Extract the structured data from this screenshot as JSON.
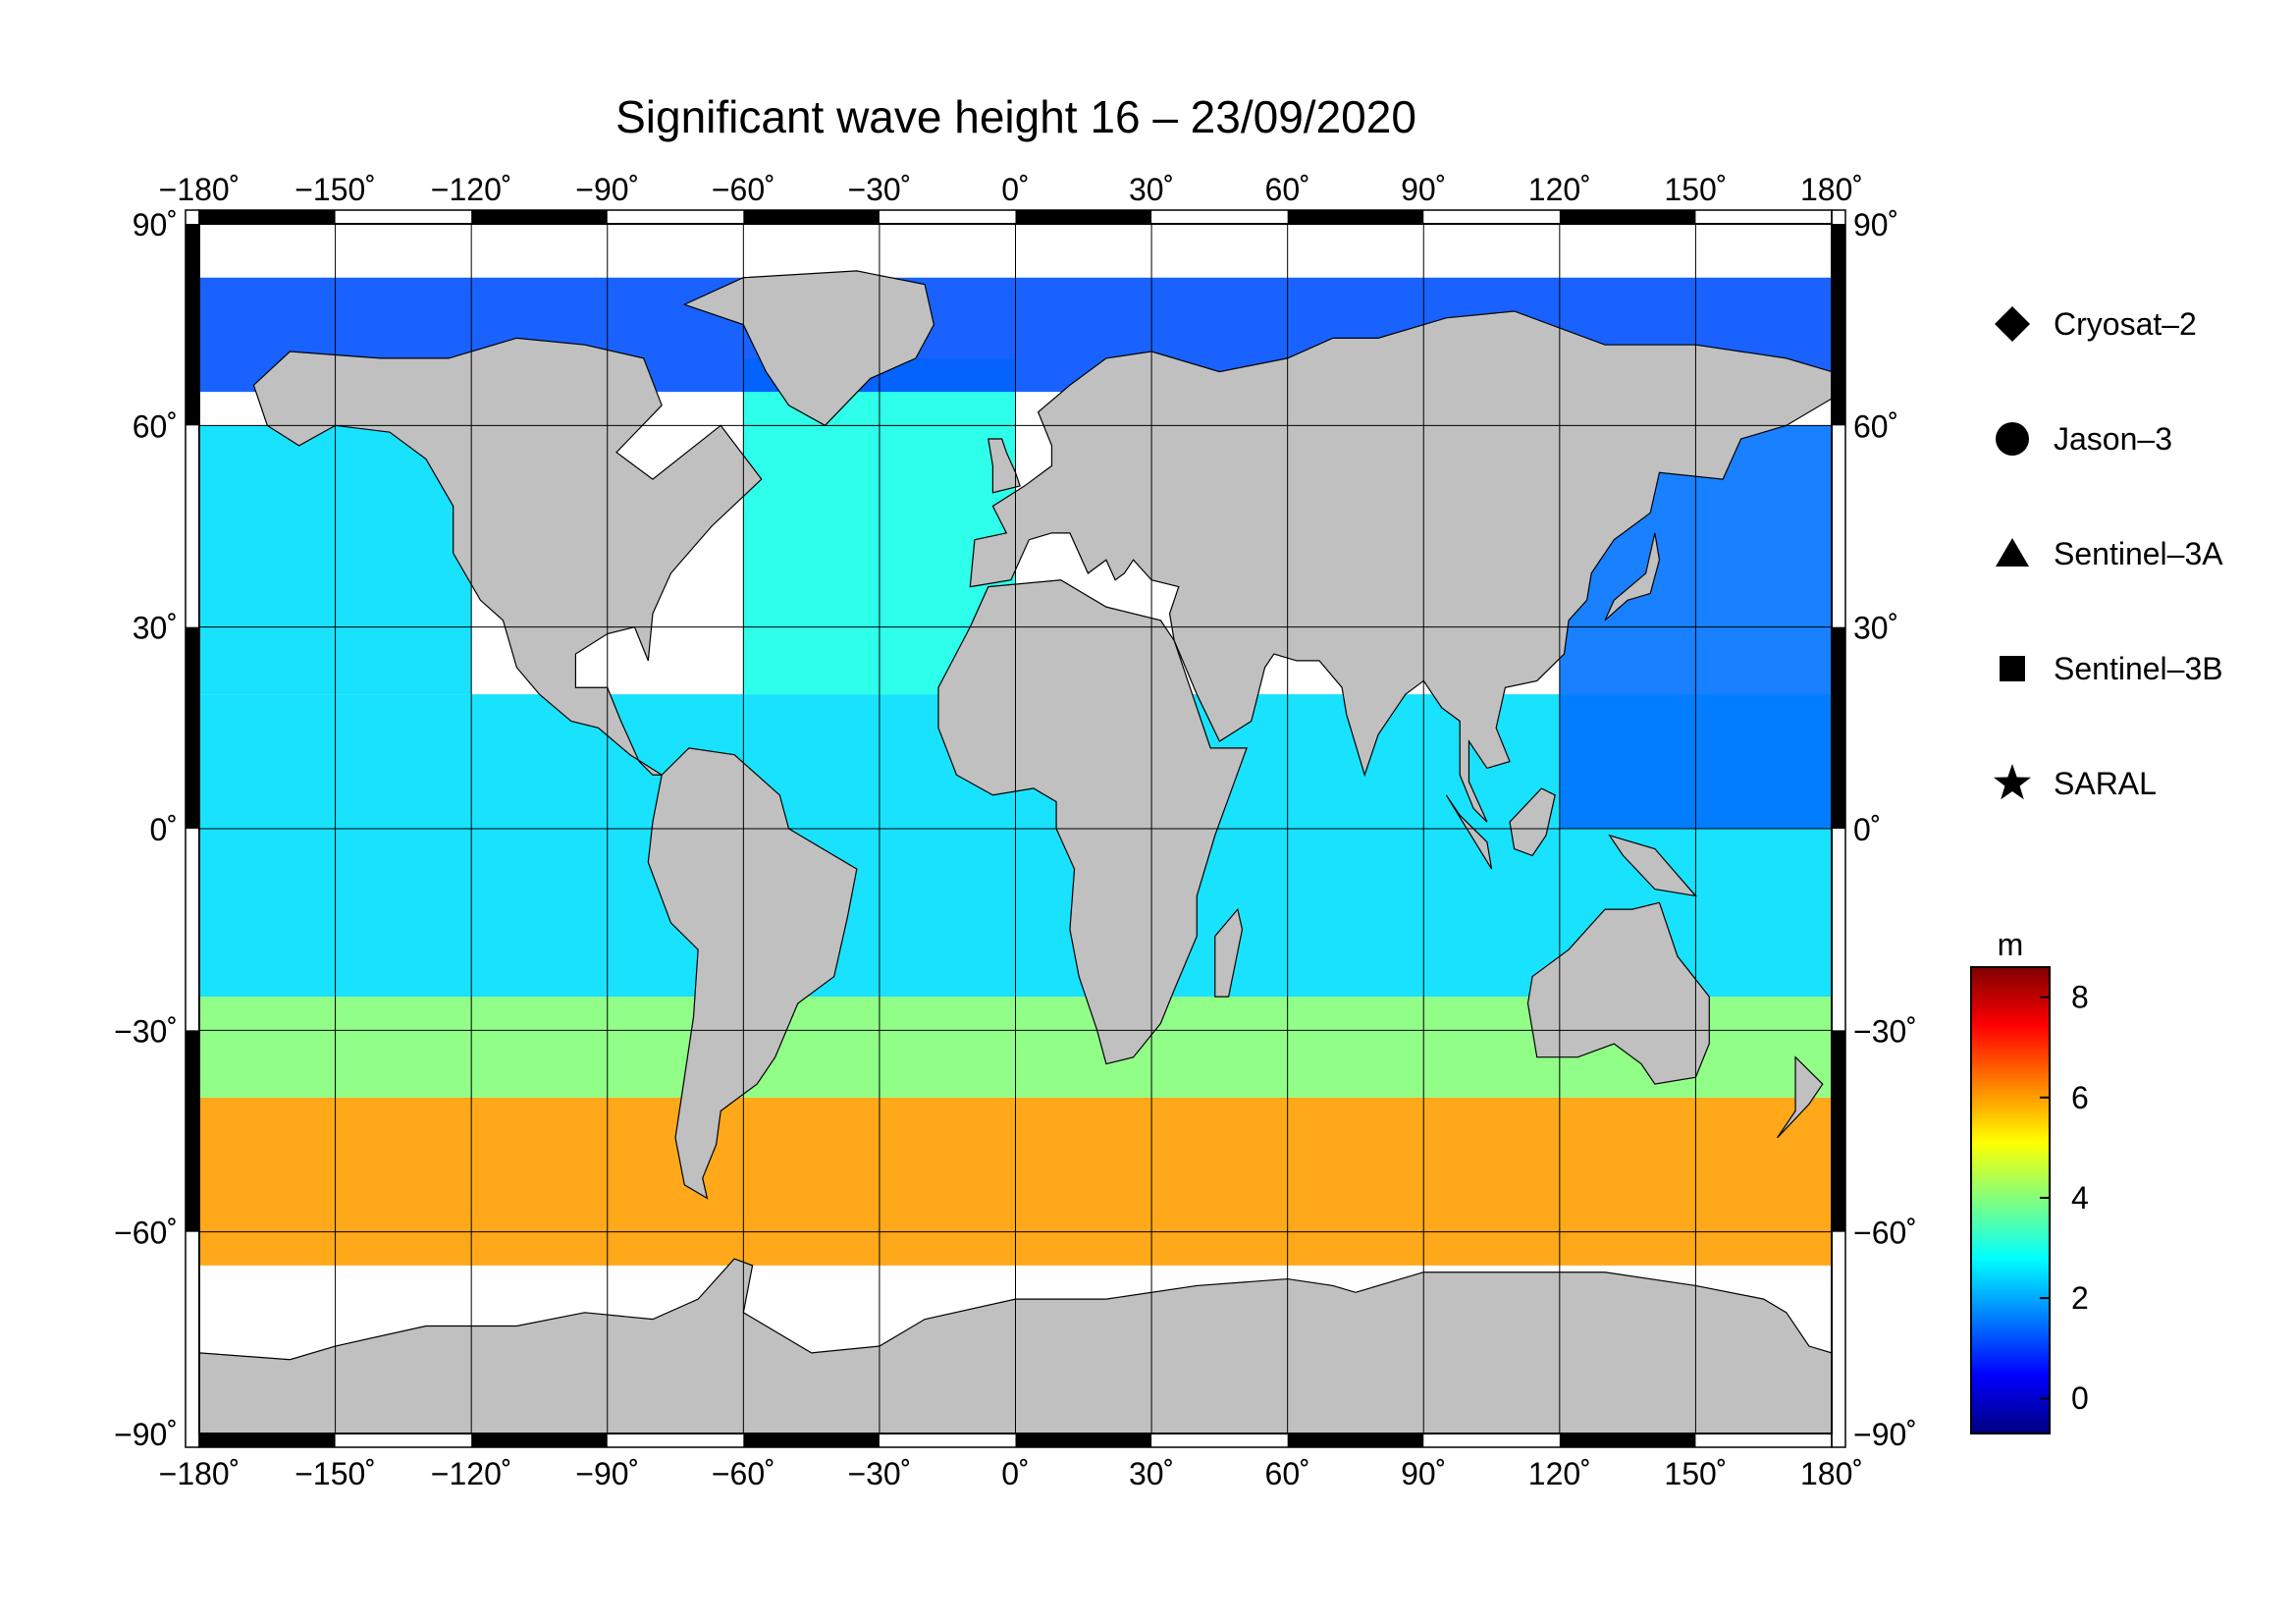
{
  "title": "Significant wave height 16 – 23/09/2020",
  "map": {
    "projection": "equirectangular",
    "lon_range": [
      -180,
      180
    ],
    "lat_range": [
      -90,
      90
    ],
    "lon_ticks": [
      -180,
      -150,
      -120,
      -90,
      -60,
      -30,
      0,
      30,
      60,
      90,
      120,
      150,
      180
    ],
    "lat_ticks": [
      90,
      60,
      30,
      0,
      -30,
      -60,
      -90
    ],
    "lon_tick_labels": [
      "−180˚",
      "−150˚",
      "−120˚",
      "−90˚",
      "−60˚",
      "−30˚",
      "0˚",
      "30˚",
      "60˚",
      "90˚",
      "120˚",
      "150˚",
      "180˚"
    ],
    "lat_tick_labels": [
      "90˚",
      "60˚",
      "30˚",
      "0˚",
      "−30˚",
      "−60˚",
      "−90˚"
    ],
    "grid": true,
    "land_color": "#c0c0c0",
    "ice_color": "#ffffff",
    "background_color": "#ffffff"
  },
  "legend": {
    "placement": "right",
    "items": [
      {
        "label": "Cryosat–2",
        "symbol": "diamond"
      },
      {
        "label": "Jason–3",
        "symbol": "circle"
      },
      {
        "label": "Sentinel–3A",
        "symbol": "triangle"
      },
      {
        "label": "Sentinel–3B",
        "symbol": "square"
      },
      {
        "label": "SARAL",
        "symbol": "star"
      }
    ]
  },
  "colorbar": {
    "unit": "m",
    "range": [
      -0.7,
      8.6
    ],
    "ticks": [
      0,
      2,
      4,
      6,
      8
    ],
    "tick_labels": [
      "0",
      "2",
      "4",
      "6",
      "8"
    ],
    "colormap": "jet"
  },
  "chart_data": {
    "type": "heatmap",
    "title": "Significant wave height 16 – 23/09/2020",
    "xlabel": "",
    "ylabel": "",
    "xlim": [
      -180,
      180
    ],
    "ylim": [
      -90,
      90
    ],
    "value_unit": "m",
    "zlim": [
      -0.7,
      8.6
    ],
    "grid": true,
    "regions": [
      {
        "lon": [
          -180,
          180
        ],
        "lat": [
          -65,
          -40
        ],
        "swh_m": 6.0
      },
      {
        "lon": [
          -180,
          180
        ],
        "lat": [
          -40,
          -25
        ],
        "swh_m": 4.0
      },
      {
        "lon": [
          -180,
          180
        ],
        "lat": [
          -25,
          20
        ],
        "swh_m": 2.5
      },
      {
        "lon": [
          -60,
          0
        ],
        "lat": [
          20,
          70
        ],
        "swh_m": 3.0
      },
      {
        "lon": [
          -180,
          -120
        ],
        "lat": [
          20,
          60
        ],
        "swh_m": 2.5
      },
      {
        "lon": [
          120,
          180
        ],
        "lat": [
          0,
          60
        ],
        "swh_m": 1.5
      },
      {
        "lon": [
          -180,
          180
        ],
        "lat": [
          65,
          82
        ],
        "swh_m": 1.2
      }
    ]
  }
}
